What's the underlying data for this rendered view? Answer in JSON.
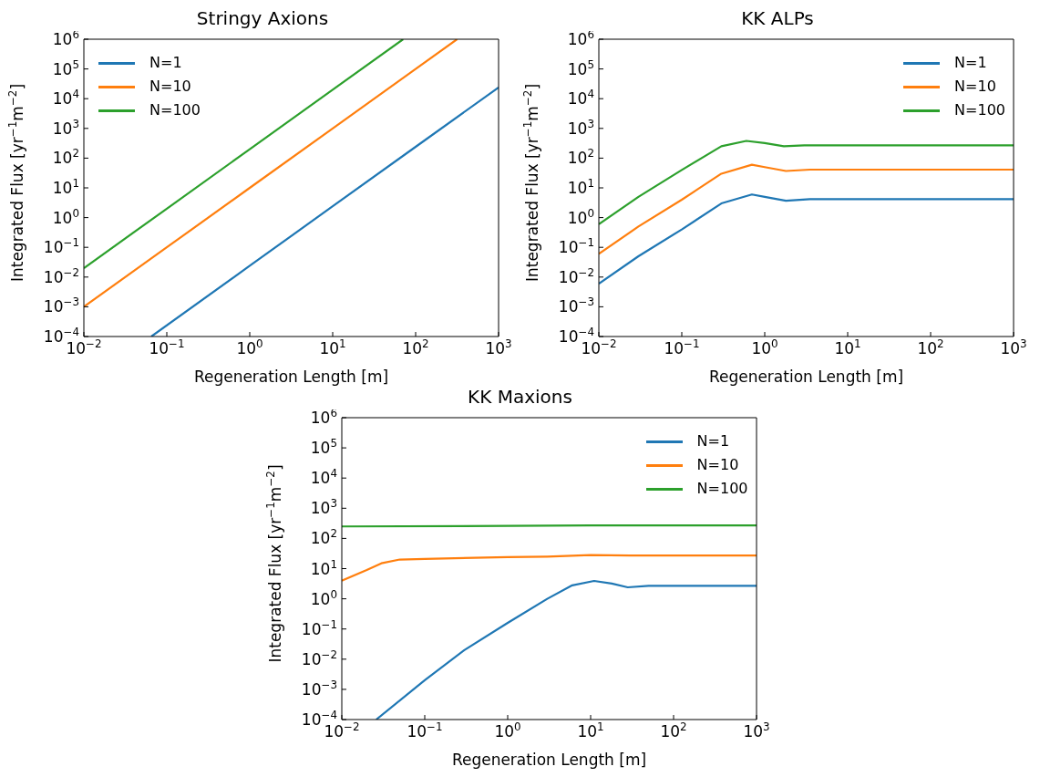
{
  "chart_data": [
    {
      "type": "line",
      "title": "Stringy Axions",
      "xlabel": "Regeneration Length [m]",
      "ylabel": "Integrated Flux [yr$^{−1}$m$^{−2}$]",
      "log": "xy",
      "legend": "top left",
      "xlim": [
        0.01,
        1000
      ],
      "ylim": [
        0.0001,
        1000000
      ],
      "xticks": [
        {
          "value": 0.01,
          "label": "10$^{−2}$"
        },
        {
          "value": 0.1,
          "label": "10$^{−1}$"
        },
        {
          "value": 1,
          "label": "10$^{0}$"
        },
        {
          "value": 10,
          "label": "10$^{1}$"
        },
        {
          "value": 100,
          "label": "10$^{2}$"
        },
        {
          "value": 1000,
          "label": "10$^{3}$"
        }
      ],
      "yticks": [
        {
          "value": 0.0001,
          "label": "10$^{−4}$"
        },
        {
          "value": 0.001,
          "label": "10$^{−3}$"
        },
        {
          "value": 0.01,
          "label": "10$^{−2}$"
        },
        {
          "value": 0.1,
          "label": "10$^{−1}$"
        },
        {
          "value": 1,
          "label": "10$^{0}$"
        },
        {
          "value": 10,
          "label": "10$^{1}$"
        },
        {
          "value": 100,
          "label": "10$^{2}$"
        },
        {
          "value": 1000,
          "label": "10$^{3}$"
        },
        {
          "value": 10000,
          "label": "10$^{4}$"
        },
        {
          "value": 100000,
          "label": "10$^{5}$"
        },
        {
          "value": 1000000,
          "label": "10$^{6}$"
        }
      ],
      "series": [
        {
          "name": "N=1",
          "color": "#1f77b4",
          "x": [
            0.065,
            1,
            10,
            100,
            1000
          ],
          "values": [
            0.0001,
            0.024,
            2.4,
            240,
            24000
          ]
        },
        {
          "name": "N=10",
          "color": "#ff7f0e",
          "x": [
            0.01,
            0.1,
            1,
            10,
            100,
            316
          ],
          "values": [
            0.001,
            0.1,
            10,
            1000,
            100000,
            1000000
          ]
        },
        {
          "name": "N=100",
          "color": "#2ca02c",
          "x": [
            0.01,
            0.1,
            1,
            10,
            70.7
          ],
          "values": [
            0.02,
            2,
            200,
            20000,
            1000000
          ]
        }
      ]
    },
    {
      "type": "line",
      "title": "KK ALPs",
      "xlabel": "Regeneration Length [m]",
      "ylabel": "Integrated Flux [yr$^{−1}$m$^{−2}$]",
      "log": "xy",
      "legend": "top right",
      "xlim": [
        0.01,
        1000
      ],
      "ylim": [
        0.0001,
        1000000
      ],
      "xticks": [
        {
          "value": 0.01,
          "label": "10$^{−2}$"
        },
        {
          "value": 0.1,
          "label": "10$^{−1}$"
        },
        {
          "value": 1,
          "label": "10$^{0}$"
        },
        {
          "value": 10,
          "label": "10$^{1}$"
        },
        {
          "value": 100,
          "label": "10$^{2}$"
        },
        {
          "value": 1000,
          "label": "10$^{3}$"
        }
      ],
      "yticks": [
        {
          "value": 0.0001,
          "label": "10$^{−4}$"
        },
        {
          "value": 0.001,
          "label": "10$^{−3}$"
        },
        {
          "value": 0.01,
          "label": "10$^{−2}$"
        },
        {
          "value": 0.1,
          "label": "10$^{−1}$"
        },
        {
          "value": 1,
          "label": "10$^{0}$"
        },
        {
          "value": 10,
          "label": "10$^{1}$"
        },
        {
          "value": 100,
          "label": "10$^{2}$"
        },
        {
          "value": 1000,
          "label": "10$^{3}$"
        },
        {
          "value": 10000,
          "label": "10$^{4}$"
        },
        {
          "value": 100000,
          "label": "10$^{5}$"
        },
        {
          "value": 1000000,
          "label": "10$^{6}$"
        }
      ],
      "series": [
        {
          "name": "N=1",
          "color": "#1f77b4",
          "x": [
            0.01,
            0.03,
            0.1,
            0.3,
            0.7,
            1,
            1.8,
            3.5,
            10,
            100,
            1000
          ],
          "values": [
            0.006,
            0.05,
            0.4,
            3,
            6,
            5,
            3.7,
            4.2,
            4.2,
            4.2,
            4.2
          ]
        },
        {
          "name": "N=10",
          "color": "#ff7f0e",
          "x": [
            0.01,
            0.03,
            0.1,
            0.3,
            0.7,
            1,
            1.8,
            3.5,
            10,
            100,
            1000
          ],
          "values": [
            0.06,
            0.5,
            4,
            30,
            60,
            50,
            37,
            41,
            41,
            41,
            41
          ]
        },
        {
          "name": "N=100",
          "color": "#2ca02c",
          "x": [
            0.01,
            0.03,
            0.1,
            0.3,
            0.6,
            1,
            1.7,
            3,
            10,
            100,
            1000
          ],
          "values": [
            0.6,
            5,
            40,
            250,
            380,
            320,
            250,
            270,
            270,
            270,
            270
          ]
        }
      ]
    },
    {
      "type": "line",
      "title": "KK Maxions",
      "xlabel": "Regeneration Length [m]",
      "ylabel": "Integrated Flux [yr$^{−1}$m$^{−2}$]",
      "log": "xy",
      "legend": "top right",
      "xlim": [
        0.01,
        1000
      ],
      "ylim": [
        0.0001,
        1000000
      ],
      "xticks": [
        {
          "value": 0.01,
          "label": "10$^{−2}$"
        },
        {
          "value": 0.1,
          "label": "10$^{−1}$"
        },
        {
          "value": 1,
          "label": "10$^{0}$"
        },
        {
          "value": 10,
          "label": "10$^{1}$"
        },
        {
          "value": 100,
          "label": "10$^{2}$"
        },
        {
          "value": 1000,
          "label": "10$^{3}$"
        }
      ],
      "yticks": [
        {
          "value": 0.0001,
          "label": "10$^{−4}$"
        },
        {
          "value": 0.001,
          "label": "10$^{−3}$"
        },
        {
          "value": 0.01,
          "label": "10$^{−2}$"
        },
        {
          "value": 0.1,
          "label": "10$^{−1}$"
        },
        {
          "value": 1,
          "label": "10$^{0}$"
        },
        {
          "value": 10,
          "label": "10$^{1}$"
        },
        {
          "value": 100,
          "label": "10$^{2}$"
        },
        {
          "value": 1000,
          "label": "10$^{3}$"
        },
        {
          "value": 10000,
          "label": "10$^{4}$"
        },
        {
          "value": 100000,
          "label": "10$^{5}$"
        },
        {
          "value": 1000000,
          "label": "10$^{6}$"
        }
      ],
      "series": [
        {
          "name": "N=1",
          "color": "#1f77b4",
          "x": [
            0.026,
            0.1,
            0.3,
            1,
            3,
            6,
            11,
            18,
            28,
            50,
            100,
            1000
          ],
          "values": [
            0.0001,
            0.002,
            0.02,
            0.16,
            1,
            2.8,
            3.9,
            3.2,
            2.4,
            2.7,
            2.7,
            2.7
          ]
        },
        {
          "name": "N=10",
          "color": "#ff7f0e",
          "x": [
            0.01,
            0.02,
            0.03,
            0.05,
            0.1,
            1,
            3,
            10,
            30,
            100,
            1000
          ],
          "values": [
            4,
            9,
            15,
            20,
            21,
            24,
            25,
            28,
            27,
            27,
            27
          ]
        },
        {
          "name": "N=100",
          "color": "#2ca02c",
          "x": [
            0.01,
            1,
            10,
            1000
          ],
          "values": [
            250,
            260,
            270,
            270
          ]
        }
      ]
    }
  ]
}
